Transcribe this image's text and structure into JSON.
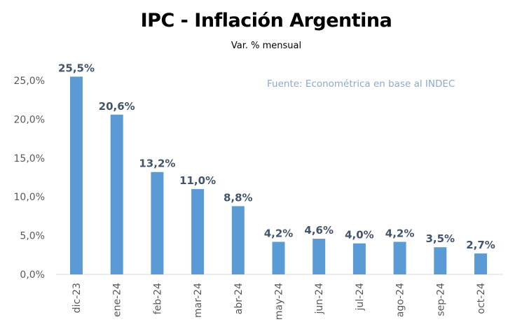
{
  "chart_data": {
    "type": "bar",
    "title": "IPC - Inflación Argentina",
    "subtitle": "Var. % mensual",
    "annotation": "Fuente: Econométrica en base al INDEC",
    "categories": [
      "dic-23",
      "ene-24",
      "feb-24",
      "mar-24",
      "abr-24",
      "may-24",
      "jun-24",
      "jul-24",
      "ago-24",
      "sep-24",
      "oct-24"
    ],
    "values": [
      25.5,
      20.6,
      13.2,
      11.0,
      8.8,
      4.2,
      4.6,
      4.0,
      4.2,
      3.5,
      2.7
    ],
    "data_labels": [
      "25,5%",
      "20,6%",
      "13,2%",
      "11,0%",
      "8,8%",
      "4,2%",
      "4,6%",
      "4,0%",
      "4,2%",
      "3,5%",
      "2,7%"
    ],
    "y_ticks": [
      0,
      5,
      10,
      15,
      20,
      25
    ],
    "y_tick_labels": [
      "0,0%",
      "5,0%",
      "10,0%",
      "15,0%",
      "20,0%",
      "25,0%"
    ],
    "ylim": [
      0,
      25
    ],
    "grid": false,
    "legend": "none",
    "colors": {
      "bar": "#5B9BD5",
      "data_label": "#44546A",
      "axis_label": "#595959",
      "source": "#8EA9C8"
    }
  }
}
